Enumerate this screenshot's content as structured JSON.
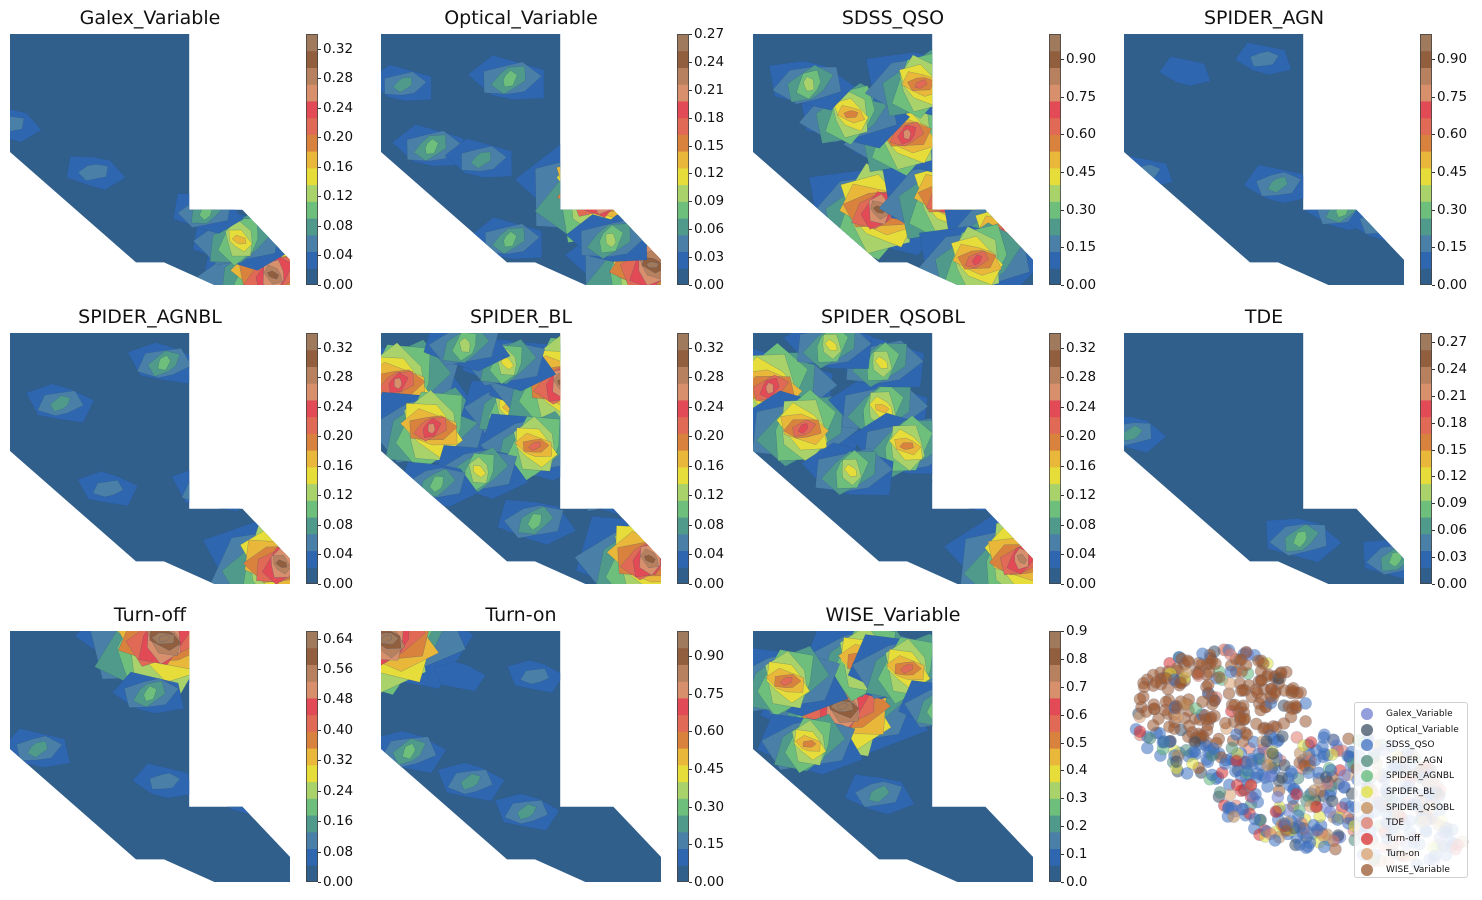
{
  "chart_data": {
    "type": "contour",
    "colors": {
      "colormap": [
        "#315f8b",
        "#2f66b0",
        "#4a80a8",
        "#4f9a8a",
        "#6fbf7c",
        "#a9d26a",
        "#e6dc3a",
        "#e9b83a",
        "#d9823e",
        "#e06a55",
        "#e24a55",
        "#d8906c",
        "#b7805e",
        "#915e3e",
        "#a07a5c"
      ]
    },
    "panels": [
      {
        "title": "Galex_Variable",
        "ticks": [
          "0.00",
          "0.04",
          "0.08",
          "0.12",
          "0.16",
          "0.20",
          "0.24",
          "0.28",
          "0.32"
        ],
        "vmax": 0.34,
        "hotspots": [
          [
            0.94,
            0.96,
            0.3
          ],
          [
            0.82,
            0.82,
            0.16
          ],
          [
            0.3,
            0.55,
            0.05
          ],
          [
            0.7,
            0.71,
            0.08
          ],
          [
            0.0,
            0.36,
            0.05
          ]
        ]
      },
      {
        "title": "Optical_Variable",
        "ticks": [
          "0.00",
          "0.03",
          "0.06",
          "0.09",
          "0.12",
          "0.15",
          "0.18",
          "0.21",
          "0.24",
          "0.27"
        ],
        "vmax": 0.27,
        "hotspots": [
          [
            0.8,
            0.62,
            0.27
          ],
          [
            0.97,
            0.92,
            0.26
          ],
          [
            0.46,
            0.18,
            0.08
          ],
          [
            0.18,
            0.45,
            0.07
          ],
          [
            0.36,
            0.5,
            0.06
          ],
          [
            0.82,
            0.82,
            0.09
          ],
          [
            0.46,
            0.82,
            0.07
          ],
          [
            0.08,
            0.2,
            0.05
          ]
        ]
      },
      {
        "title": "SDSS_QSO",
        "ticks": [
          "0.00",
          "0.15",
          "0.30",
          "0.45",
          "0.60",
          "0.75",
          "0.90"
        ],
        "vmax": 1.0,
        "hotspots": [
          [
            0.45,
            0.7,
            0.85
          ],
          [
            0.7,
            0.65,
            0.8
          ],
          [
            0.9,
            0.8,
            0.7
          ],
          [
            0.55,
            0.4,
            0.7
          ],
          [
            0.35,
            0.32,
            0.55
          ],
          [
            0.95,
            0.1,
            1.0
          ],
          [
            0.2,
            0.2,
            0.35
          ],
          [
            0.6,
            0.2,
            0.6
          ],
          [
            0.8,
            0.9,
            0.65
          ]
        ]
      },
      {
        "title": "SPIDER_AGN",
        "ticks": [
          "0.00",
          "0.15",
          "0.30",
          "0.45",
          "0.60",
          "0.75",
          "0.90"
        ],
        "vmax": 1.0,
        "hotspots": [
          [
            0.55,
            0.6,
            0.2
          ],
          [
            0.78,
            0.7,
            0.25
          ],
          [
            0.92,
            0.75,
            0.2
          ],
          [
            0.5,
            0.1,
            0.12
          ],
          [
            0.22,
            0.15,
            0.08
          ],
          [
            0.08,
            0.55,
            0.1
          ]
        ]
      },
      {
        "title": "SPIDER_AGNBL",
        "ticks": [
          "0.00",
          "0.04",
          "0.08",
          "0.12",
          "0.16",
          "0.20",
          "0.24",
          "0.28",
          "0.32"
        ],
        "vmax": 0.34,
        "hotspots": [
          [
            0.97,
            0.92,
            0.3
          ],
          [
            0.55,
            0.12,
            0.08
          ],
          [
            0.18,
            0.28,
            0.07
          ],
          [
            0.72,
            0.62,
            0.1
          ],
          [
            0.35,
            0.62,
            0.05
          ]
        ]
      },
      {
        "title": "SPIDER_BL",
        "ticks": [
          "0.00",
          "0.04",
          "0.08",
          "0.12",
          "0.16",
          "0.20",
          "0.24",
          "0.28",
          "0.32"
        ],
        "vmax": 0.34,
        "hotspots": [
          [
            0.06,
            0.2,
            0.26
          ],
          [
            0.18,
            0.38,
            0.24
          ],
          [
            0.46,
            0.3,
            0.16
          ],
          [
            0.65,
            0.2,
            0.3
          ],
          [
            0.45,
            0.12,
            0.14
          ],
          [
            0.3,
            0.05,
            0.12
          ],
          [
            0.55,
            0.45,
            0.2
          ],
          [
            0.96,
            0.9,
            0.3
          ],
          [
            0.35,
            0.55,
            0.14
          ],
          [
            0.2,
            0.6,
            0.1
          ],
          [
            0.82,
            0.62,
            0.14
          ],
          [
            0.55,
            0.75,
            0.1
          ]
        ]
      },
      {
        "title": "SPIDER_QSOBL",
        "ticks": [
          "0.00",
          "0.04",
          "0.08",
          "0.12",
          "0.16",
          "0.20",
          "0.24",
          "0.28",
          "0.32"
        ],
        "vmax": 0.34,
        "hotspots": [
          [
            0.06,
            0.22,
            0.26
          ],
          [
            0.18,
            0.38,
            0.22
          ],
          [
            0.46,
            0.3,
            0.16
          ],
          [
            0.46,
            0.12,
            0.14
          ],
          [
            0.28,
            0.05,
            0.13
          ],
          [
            0.55,
            0.45,
            0.18
          ],
          [
            0.35,
            0.55,
            0.14
          ],
          [
            0.96,
            0.9,
            0.28
          ],
          [
            0.8,
            0.62,
            0.12
          ]
        ]
      },
      {
        "title": "TDE",
        "ticks": [
          "0.00",
          "0.03",
          "0.06",
          "0.09",
          "0.12",
          "0.15",
          "0.18",
          "0.21",
          "0.24",
          "0.27"
        ],
        "vmax": 0.28,
        "hotspots": [
          [
            0.63,
            0.82,
            0.08
          ],
          [
            0.97,
            0.9,
            0.07
          ],
          [
            0.03,
            0.4,
            0.05
          ]
        ]
      },
      {
        "title": "Turn-off",
        "ticks": [
          "0.00",
          "0.08",
          "0.16",
          "0.24",
          "0.32",
          "0.40",
          "0.48",
          "0.56",
          "0.64"
        ],
        "vmax": 0.66,
        "hotspots": [
          [
            0.55,
            0.03,
            0.66
          ],
          [
            0.5,
            0.25,
            0.16
          ],
          [
            0.1,
            0.47,
            0.14
          ],
          [
            0.55,
            0.6,
            0.1
          ],
          [
            0.84,
            0.66,
            0.12
          ]
        ]
      },
      {
        "title": "Turn-on",
        "ticks": [
          "0.00",
          "0.15",
          "0.30",
          "0.45",
          "0.60",
          "0.75",
          "0.90"
        ],
        "vmax": 1.0,
        "hotspots": [
          [
            0.02,
            0.03,
            1.0
          ],
          [
            0.1,
            0.48,
            0.25
          ],
          [
            0.32,
            0.6,
            0.2
          ],
          [
            0.52,
            0.72,
            0.18
          ],
          [
            0.55,
            0.18,
            0.12
          ],
          [
            0.28,
            0.18,
            0.08
          ]
        ]
      },
      {
        "title": "WISE_Variable",
        "ticks": [
          "0.0",
          "0.1",
          "0.2",
          "0.3",
          "0.4",
          "0.5",
          "0.6",
          "0.7",
          "0.8",
          "0.9"
        ],
        "vmax": 0.9,
        "hotspots": [
          [
            0.32,
            0.3,
            0.88
          ],
          [
            0.4,
            0.12,
            0.62
          ],
          [
            0.12,
            0.2,
            0.55
          ],
          [
            0.55,
            0.15,
            0.55
          ],
          [
            0.68,
            0.3,
            0.35
          ],
          [
            0.2,
            0.45,
            0.45
          ],
          [
            0.45,
            0.65,
            0.2
          ]
        ]
      }
    ],
    "scatter": {
      "type": "scatter",
      "legend_position": "lower-right",
      "legend": [
        {
          "label": "Galex_Variable",
          "color": "#6f7fd0"
        },
        {
          "label": "Optical_Variable",
          "color": "#3d4f63"
        },
        {
          "label": "SDSS_QSO",
          "color": "#3d6fc0"
        },
        {
          "label": "SPIDER_AGN",
          "color": "#4f8a78"
        },
        {
          "label": "SPIDER_AGNBL",
          "color": "#5fb777"
        },
        {
          "label": "SPIDER_BL",
          "color": "#e0e040"
        },
        {
          "label": "SPIDER_QSOBL",
          "color": "#c08a56"
        },
        {
          "label": "TDE",
          "color": "#e07a6a"
        },
        {
          "label": "Turn-off",
          "color": "#d83030"
        },
        {
          "label": "Turn-on",
          "color": "#d8a070"
        },
        {
          "label": "WISE_Variable",
          "color": "#9a5830"
        }
      ]
    }
  }
}
